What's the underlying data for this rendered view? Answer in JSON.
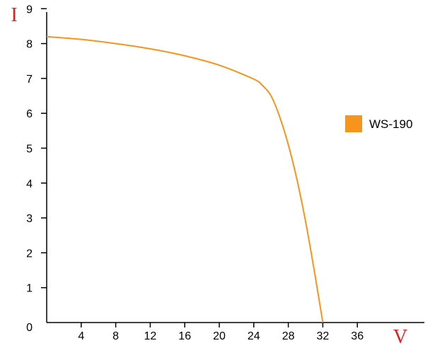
{
  "chart_data": {
    "type": "line",
    "xlabel": "V",
    "ylabel": "I",
    "xlim": [
      0,
      40
    ],
    "ylim": [
      0,
      9
    ],
    "x_ticks": [
      4,
      8,
      12,
      16,
      20,
      24,
      28,
      32,
      36
    ],
    "y_ticks": [
      0,
      1,
      2,
      3,
      4,
      5,
      6,
      7,
      8,
      9
    ],
    "grid": false,
    "legend_position": "right",
    "series": [
      {
        "name": "WS-190",
        "color": "#f7941d",
        "x": [
          0,
          4,
          8,
          12,
          16,
          20,
          24,
          25,
          26,
          27,
          28,
          29,
          30,
          31,
          31.5,
          32
        ],
        "y": [
          8.2,
          8.12,
          8.0,
          7.85,
          7.65,
          7.38,
          6.98,
          6.8,
          6.5,
          5.9,
          5.1,
          4.1,
          2.9,
          1.5,
          0.75,
          0
        ]
      }
    ]
  }
}
